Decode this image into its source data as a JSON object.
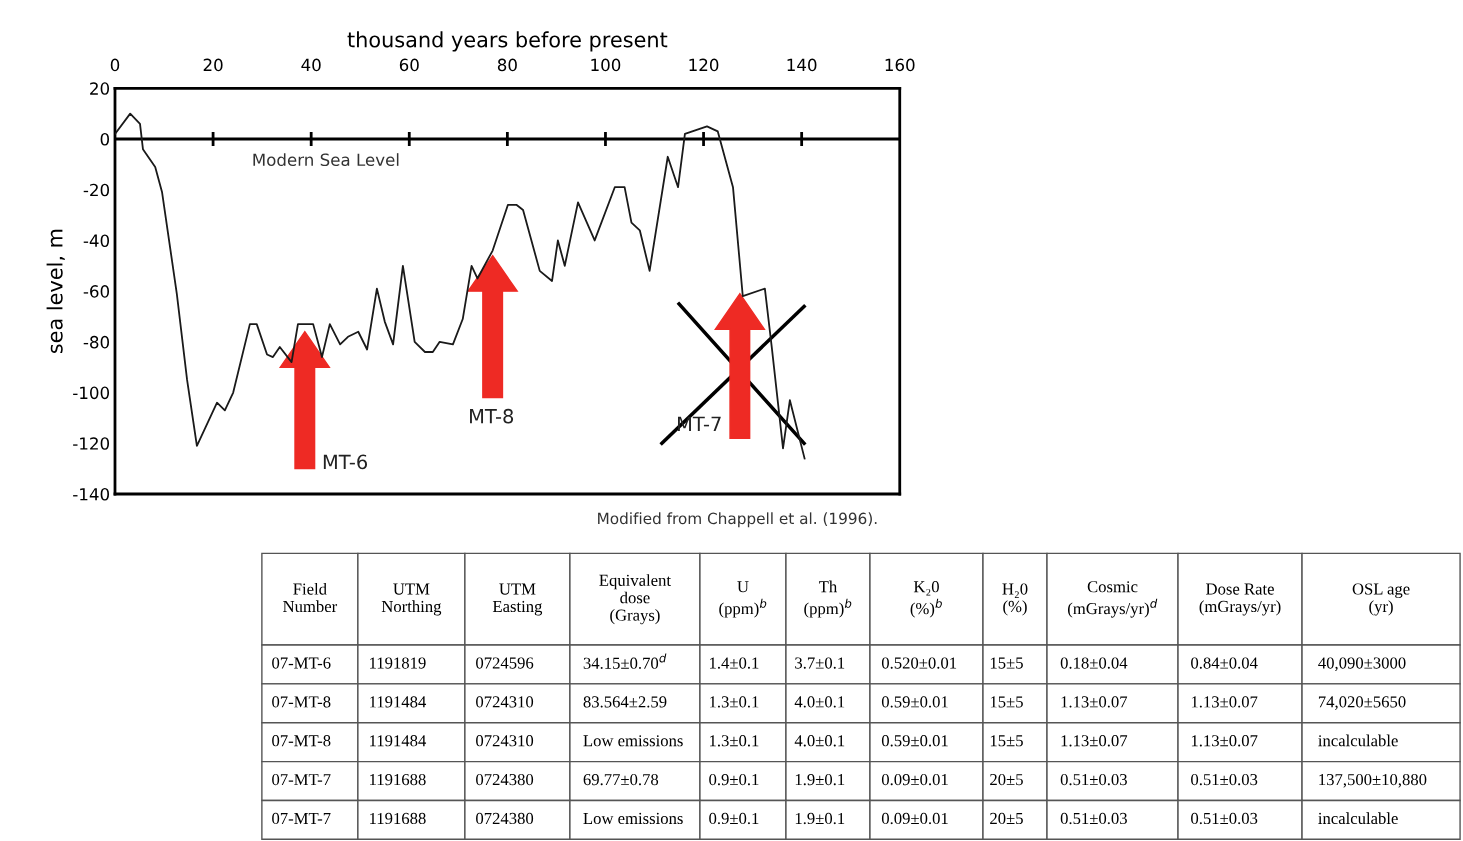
{
  "chart_data": {
    "type": "line",
    "xlabel": "thousand years before present",
    "ylabel": "sea level, m",
    "xlim": [
      0,
      160
    ],
    "xticks": [
      0,
      20,
      40,
      60,
      80,
      100,
      120,
      140,
      160
    ],
    "ylim": [
      -140,
      20
    ],
    "yticks": [
      20,
      0,
      -20,
      -40,
      -60,
      -80,
      -100,
      -120,
      -140
    ],
    "grid": false,
    "series": [
      {
        "color": "#1a1a1a",
        "x": [
          0,
          3.1,
          5.1,
          5.7,
          8.2,
          9.6,
          12.6,
          14.7,
          16.7,
          20.8,
          22.4,
          24.1,
          27.5,
          28.9,
          31.0,
          32.2,
          33.6,
          36.0,
          37.3,
          40.4,
          42.2,
          43.8,
          45.9,
          47.5,
          49.6,
          51.4,
          53.4,
          55.0,
          56.7,
          58.7,
          61.1,
          63.2,
          64.8,
          66.2,
          68.9,
          70.9,
          72.7,
          73.9,
          77.0,
          80.1,
          81.9,
          83.2,
          86.6,
          89.1,
          90.3,
          91.7,
          94.4,
          97.8,
          101.9,
          103.9,
          105.3,
          107.0,
          109.0,
          112.7,
          114.8,
          116.2,
          120.7,
          122.9,
          126.0,
          128.0,
          132.5,
          133.9,
          136.2,
          137.6,
          140.6
        ],
        "values": [
          2,
          10,
          6,
          -4,
          -11,
          -21,
          -61,
          -95,
          -121,
          -104,
          -107,
          -100,
          -73,
          -73,
          -85,
          -86,
          -82,
          -88,
          -73,
          -73,
          -86,
          -73,
          -81,
          -78,
          -76,
          -83,
          -59,
          -72,
          -81,
          -50,
          -80,
          -84,
          -84,
          -80,
          -81,
          -71,
          -50,
          -55,
          -44,
          -26,
          -26,
          -28,
          -52,
          -56,
          -40,
          -50,
          -25,
          -40,
          -19,
          -19,
          -33,
          -36,
          -52,
          -7,
          -19,
          2,
          5,
          3,
          -19,
          -62,
          -59,
          -82,
          -122,
          -103,
          -126
        ]
      }
    ],
    "ref_lines": [
      {
        "axis": "y",
        "value": 0,
        "color": "#000000"
      }
    ],
    "annotations": [
      {
        "text": "Modern Sea Level",
        "x": 43,
        "y": 0
      },
      "MT-6",
      "MT-8",
      "MT-7",
      "Modified from Chappell et al. (1996).",
      "Field\nNumber",
      "UTM\nNorthing",
      "UTM\nEasting",
      "Equivalent\ndose\n(Grays)",
      "U\n(ppm)$^{b}$",
      "Th\n(ppm)$^{b}$",
      "K₂0\n(%)$^{b}$",
      "H₂0\n(%)",
      "Cosmic\n(mGrays/yr)$^{d}$",
      "Dose Rate\n(mGrays/yr)",
      "OSL age\n(yr)",
      "07-MT-6",
      "1191819",
      "0724596",
      "34.15±0.70$^{d}$",
      "1.4±0.1",
      "3.7±0.1",
      "0.520±0.01",
      "15±5",
      "0.18±0.04",
      "0.84±0.04",
      "40,090±3000",
      "07-MT-8",
      "1191484",
      "0724310",
      "83.564±2.59",
      "1.3±0.1",
      "4.0±0.1",
      "0.59±0.01",
      "15±5",
      "1.13±0.07",
      "1.13±0.07",
      "74,020±5650",
      "07-MT-8",
      "1191484",
      "0724310",
      "Low emissions",
      "1.3±0.1",
      "4.0±0.1",
      "0.59±0.01",
      "15±5",
      "1.13±0.07",
      "1.13±0.07",
      "incalculable",
      "07-MT-7",
      "1191688",
      "0724380",
      "69.77±0.78",
      "0.9±0.1",
      "1.9±0.1",
      "0.09±0.01",
      "20±5",
      "0.51±0.03",
      "0.51±0.03",
      "137,500±10,880",
      "07-MT-7",
      "1191688",
      "0724380",
      "Low emissions",
      "0.9±0.1",
      "1.9±0.1",
      "0.09±0.01",
      "20±5",
      "0.51±0.03",
      "0.51±0.03",
      "incalculable"
    ]
  }
}
